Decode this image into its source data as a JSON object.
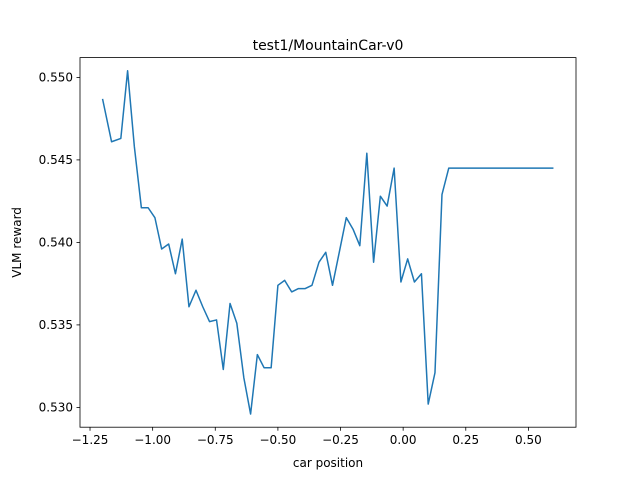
{
  "chart_data": {
    "type": "line",
    "title": "test1/MountainCar-v0",
    "xlabel": "car position",
    "ylabel": "VLM reward",
    "xlim": [
      -1.29,
      0.69
    ],
    "ylim": [
      0.5288,
      0.5512
    ],
    "xticks": [
      {
        "value": -1.25,
        "label": "−1.25"
      },
      {
        "value": -1.0,
        "label": "−1.00"
      },
      {
        "value": -0.75,
        "label": "−0.75"
      },
      {
        "value": -0.5,
        "label": "−0.50"
      },
      {
        "value": -0.25,
        "label": "−0.25"
      },
      {
        "value": 0.0,
        "label": "0.00"
      },
      {
        "value": 0.25,
        "label": "0.25"
      },
      {
        "value": 0.5,
        "label": "0.50"
      }
    ],
    "yticks": [
      {
        "value": 0.53,
        "label": "0.530"
      },
      {
        "value": 0.535,
        "label": "0.535"
      },
      {
        "value": 0.54,
        "label": "0.540"
      },
      {
        "value": 0.545,
        "label": "0.545"
      },
      {
        "value": 0.55,
        "label": "0.550"
      }
    ],
    "grid": false,
    "color": "#1f77b4",
    "series": [
      {
        "x": [
          -1.2,
          -1.164,
          -1.127,
          -1.1,
          -1.073,
          -1.045,
          -1.018,
          -0.991,
          -0.964,
          -0.936,
          -0.909,
          -0.882,
          -0.855,
          -0.827,
          -0.8,
          -0.773,
          -0.745,
          -0.718,
          -0.691,
          -0.664,
          -0.636,
          -0.609,
          -0.582,
          -0.555,
          -0.527,
          -0.5,
          -0.473,
          -0.445,
          -0.418,
          -0.391,
          -0.364,
          -0.336,
          -0.309,
          -0.282,
          -0.255,
          -0.227,
          -0.2,
          -0.173,
          -0.145,
          -0.118,
          -0.091,
          -0.064,
          -0.036,
          -0.009,
          0.018,
          0.045,
          0.073,
          0.1,
          0.127,
          0.155,
          0.182,
          0.209,
          0.236,
          0.264,
          0.291,
          0.318,
          0.345,
          0.373,
          0.4,
          0.427,
          0.455,
          0.482,
          0.509,
          0.536,
          0.564,
          0.591,
          0.6
        ],
        "y": [
          0.5487,
          0.5461,
          0.5463,
          0.5504,
          0.5458,
          0.5421,
          0.5421,
          0.5415,
          0.5396,
          0.5399,
          0.5381,
          0.5402,
          0.5361,
          0.5371,
          0.5361,
          0.5352,
          0.5353,
          0.5323,
          0.5363,
          0.5351,
          0.5318,
          0.5296,
          0.5332,
          0.5324,
          0.5324,
          0.5374,
          0.5377,
          0.537,
          0.5372,
          0.5372,
          0.5374,
          0.5388,
          0.5394,
          0.5374,
          0.5394,
          0.5415,
          0.5408,
          0.5398,
          0.5454,
          0.5388,
          0.5428,
          0.5422,
          0.5445,
          0.5376,
          0.539,
          0.5376,
          0.5381,
          0.5302,
          0.5321,
          0.5429,
          0.5445,
          0.5445,
          0.5445,
          0.5445,
          0.5445,
          0.5445,
          0.5445,
          0.5445,
          0.5445,
          0.5445,
          0.5445,
          0.5445,
          0.5445,
          0.5445,
          0.5445,
          0.5445,
          0.5445
        ]
      }
    ]
  }
}
